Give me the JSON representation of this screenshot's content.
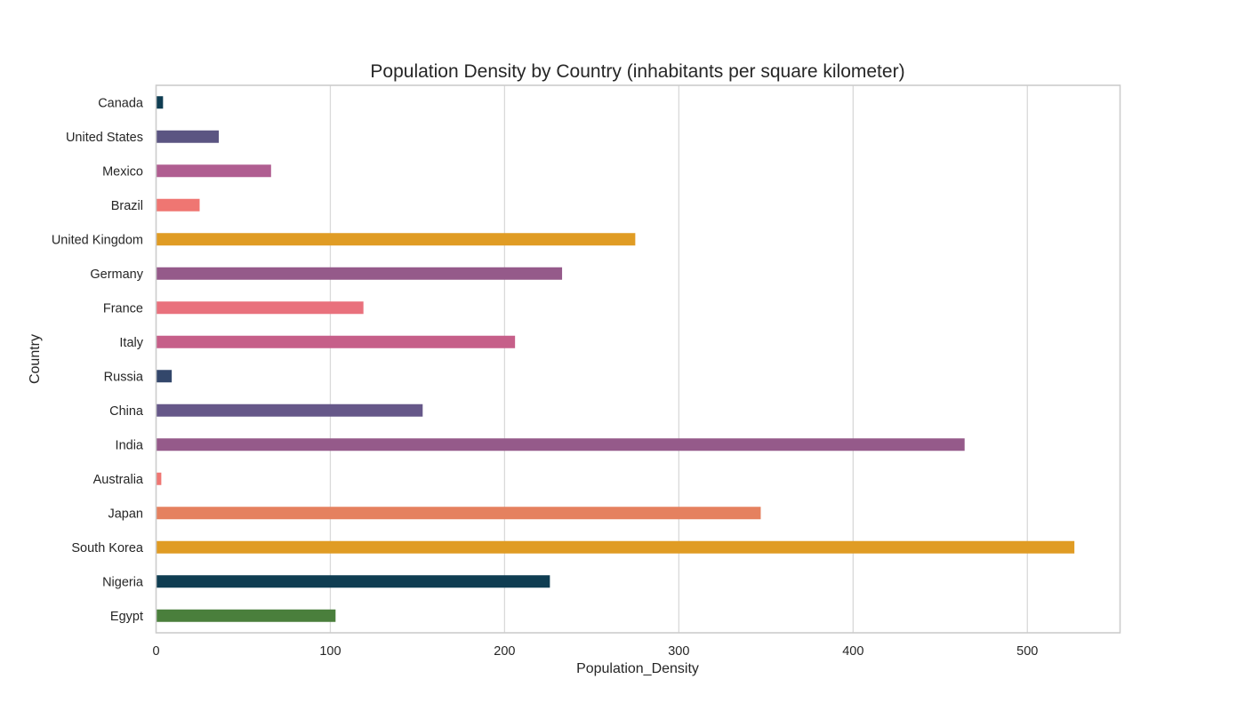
{
  "chart_data": {
    "type": "bar",
    "orientation": "horizontal",
    "title": "Population Density by Country (inhabitants per square kilometer)",
    "xlabel": "Population_Density",
    "ylabel": "Country",
    "xlim": [
      0,
      553
    ],
    "xticks": [
      0,
      100,
      200,
      300,
      400,
      500
    ],
    "grid": "vertical",
    "categories": [
      "Canada",
      "United States",
      "Mexico",
      "Brazil",
      "United Kingdom",
      "Germany",
      "France",
      "Italy",
      "Russia",
      "China",
      "India",
      "Australia",
      "Japan",
      "South Korea",
      "Nigeria",
      "Egypt"
    ],
    "values": [
      4,
      36,
      66,
      25,
      275,
      233,
      119,
      206,
      9,
      153,
      464,
      3,
      347,
      527,
      226,
      103
    ],
    "colors": [
      "#0f3d52",
      "#5b5582",
      "#b05e91",
      "#ef7672",
      "#e09c24",
      "#955a8a",
      "#e9717d",
      "#c65f89",
      "#33476b",
      "#665889",
      "#955a8a",
      "#ef7672",
      "#e5815f",
      "#e09c24",
      "#0f3d52",
      "#4a7f3c"
    ]
  }
}
